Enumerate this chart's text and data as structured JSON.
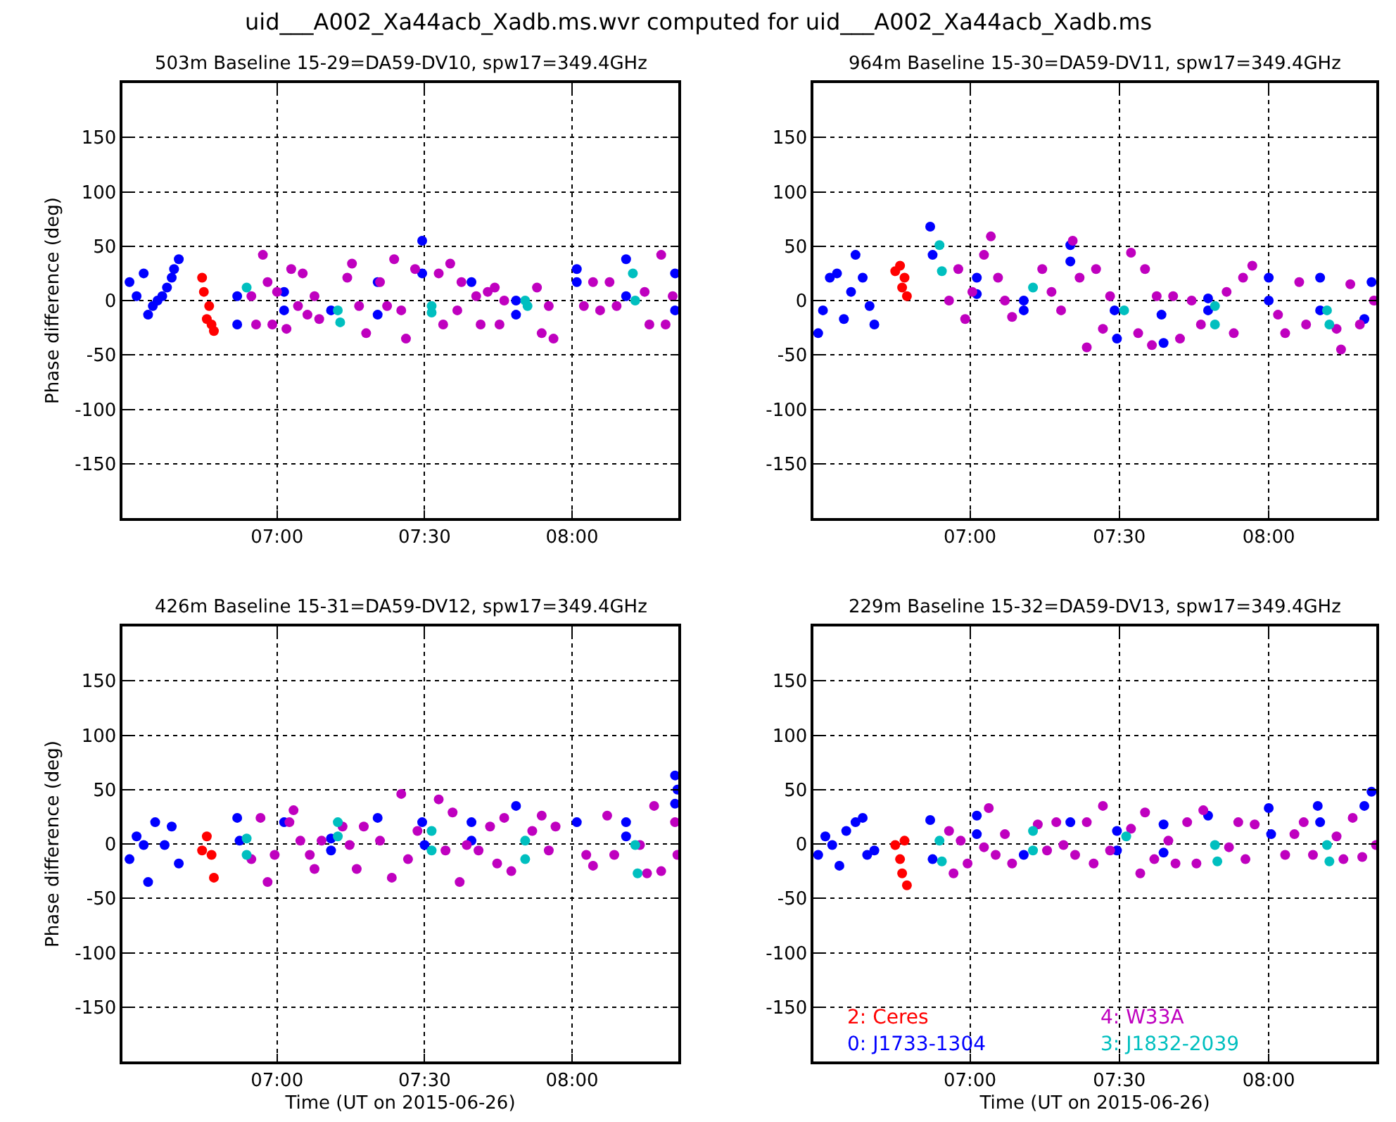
{
  "chart_data": [
    {
      "type": "scatter",
      "title": "503m Baseline 15-29=DA59-DV10, spw17=349.4GHz",
      "ylabel": "Phase difference (deg)",
      "annotations": [
        "uid___A002_Xa44acb_Xadb.ms.wvr computed for uid___A002_Xa44acb_Xadb.ms"
      ],
      "xlim": [
        6.476,
        8.36
      ],
      "xticks": [
        {
          "value": 7,
          "label": "07:00"
        },
        {
          "value": 7.5,
          "label": "07:30"
        },
        {
          "value": 8,
          "label": "08:00"
        }
      ],
      "ylim": [
        -200,
        200
      ],
      "yticks": [
        -150,
        -100,
        -50,
        0,
        50,
        100,
        150
      ],
      "grid": true,
      "marker": "circle",
      "series": [
        {
          "color": "#ff0000",
          "x": [
            6.746,
            6.752,
            6.762,
            6.77,
            6.778,
            6.786
          ],
          "values": [
            21,
            8,
            -17,
            -5,
            -22,
            -28
          ]
        },
        {
          "color": "#0000ff",
          "x": [
            6.5,
            6.524,
            6.548,
            6.563,
            6.579,
            6.595,
            6.611,
            6.627,
            6.643,
            6.651,
            6.667,
            6.865,
            6.865,
            7.024,
            7.024,
            7.183,
            7.341,
            7.341,
            7.492,
            7.492,
            7.659,
            7.81,
            7.81,
            8.016,
            8.016,
            8.183,
            8.183,
            8.349,
            8.349
          ],
          "values": [
            17,
            4,
            25,
            -13,
            -5,
            0,
            4,
            12,
            21,
            29,
            38,
            4,
            -22,
            8,
            -9,
            -9,
            17,
            -13,
            55,
            25,
            17,
            0,
            -13,
            29,
            17,
            38,
            4,
            25,
            -9
          ]
        },
        {
          "color": "#bf00bf",
          "x": [
            6.913,
            6.929,
            6.952,
            6.968,
            6.984,
            7.0,
            7.032,
            7.048,
            7.071,
            7.087,
            7.103,
            7.127,
            7.143,
            7.238,
            7.254,
            7.278,
            7.302,
            7.349,
            7.373,
            7.397,
            7.421,
            7.437,
            7.468,
            7.548,
            7.563,
            7.587,
            7.611,
            7.625,
            7.675,
            7.69,
            7.714,
            7.738,
            7.754,
            7.77,
            7.881,
            7.897,
            7.921,
            7.937,
            8.04,
            8.071,
            8.095,
            8.127,
            8.151,
            8.246,
            8.262,
            8.302,
            8.317,
            8.341
          ],
          "values": [
            4,
            -22,
            42,
            17,
            -22,
            8,
            -26,
            29,
            -5,
            25,
            -13,
            4,
            -17,
            21,
            34,
            -5,
            -30,
            17,
            -5,
            38,
            -9,
            -35,
            29,
            25,
            -22,
            34,
            -9,
            17,
            4,
            -22,
            8,
            12,
            -22,
            0,
            12,
            -30,
            -5,
            -35,
            -5,
            17,
            -9,
            17,
            -5,
            8,
            -22,
            42,
            -22,
            4
          ]
        },
        {
          "color": "#00bfbf",
          "x": [
            6.897,
            7.206,
            7.214,
            7.524,
            7.524,
            7.841,
            7.849,
            8.206,
            8.214
          ],
          "values": [
            12,
            -9,
            -20,
            -5,
            -11,
            0,
            -5,
            25,
            0
          ]
        }
      ]
    },
    {
      "type": "scatter",
      "title": "964m Baseline 15-30=DA59-DV11, spw17=349.4GHz",
      "xlim": [
        6.476,
        8.36
      ],
      "xticks": [
        {
          "value": 7,
          "label": "07:00"
        },
        {
          "value": 7.5,
          "label": "07:30"
        },
        {
          "value": 8,
          "label": "08:00"
        }
      ],
      "ylim": [
        -200,
        200
      ],
      "yticks": [
        -150,
        -100,
        -50,
        0,
        50,
        100,
        150
      ],
      "grid": true,
      "marker": "circle",
      "series": [
        {
          "color": "#ff0000",
          "x": [
            6.75,
            6.766,
            6.773,
            6.781,
            6.789
          ],
          "values": [
            27,
            32,
            12,
            21,
            4
          ]
        },
        {
          "color": "#0000ff",
          "x": [
            6.492,
            6.508,
            6.531,
            6.555,
            6.578,
            6.602,
            6.617,
            6.641,
            6.664,
            6.68,
            6.867,
            6.875,
            7.023,
            7.023,
            7.18,
            7.18,
            7.336,
            7.336,
            7.484,
            7.492,
            7.641,
            7.648,
            7.797,
            7.797,
            8.0,
            8.0,
            8.172,
            8.172,
            8.32,
            8.344
          ],
          "values": [
            -30,
            -9,
            21,
            25,
            -17,
            8,
            42,
            21,
            -5,
            -22,
            68,
            42,
            21,
            6,
            0,
            -9,
            51,
            36,
            -9,
            -35,
            -13,
            -39,
            2,
            -9,
            21,
            0,
            21,
            -9,
            -17,
            17
          ]
        },
        {
          "color": "#bf00bf",
          "x": [
            6.93,
            6.961,
            6.984,
            7.008,
            7.047,
            7.07,
            7.094,
            7.117,
            7.141,
            7.242,
            7.273,
            7.305,
            7.344,
            7.367,
            7.391,
            7.422,
            7.445,
            7.469,
            7.539,
            7.563,
            7.586,
            7.609,
            7.625,
            7.68,
            7.703,
            7.742,
            7.773,
            7.859,
            7.883,
            7.914,
            7.945,
            8.031,
            8.055,
            8.102,
            8.125,
            8.227,
            8.242,
            8.273,
            8.305,
            8.352
          ],
          "values": [
            0,
            29,
            -17,
            8,
            42,
            59,
            21,
            0,
            -15,
            29,
            8,
            -9,
            55,
            21,
            -43,
            29,
            -26,
            4,
            44,
            -30,
            29,
            -41,
            4,
            4,
            -35,
            0,
            -22,
            8,
            -30,
            21,
            32,
            -13,
            -30,
            17,
            -22,
            -26,
            -45,
            15,
            -22,
            0
          ]
        },
        {
          "color": "#00bfbf",
          "x": [
            6.898,
            6.906,
            7.211,
            7.516,
            7.82,
            7.82,
            8.195,
            8.203
          ],
          "values": [
            51,
            27,
            12,
            -9,
            -5,
            -22,
            -9,
            -22
          ]
        }
      ]
    },
    {
      "type": "scatter",
      "title": "426m Baseline 15-31=DA59-DV12, spw17=349.4GHz",
      "xlabel": "Time (UT on 2015-06-26)",
      "ylabel": "Phase difference (deg)",
      "xlim": [
        6.476,
        8.36
      ],
      "xticks": [
        {
          "value": 7,
          "label": "07:00"
        },
        {
          "value": 7.5,
          "label": "07:30"
        },
        {
          "value": 8,
          "label": "08:00"
        }
      ],
      "ylim": [
        -200,
        200
      ],
      "yticks": [
        -150,
        -100,
        -50,
        0,
        50,
        100,
        150
      ],
      "grid": true,
      "marker": "circle",
      "series": [
        {
          "color": "#ff0000",
          "x": [
            6.746,
            6.762,
            6.778,
            6.786
          ],
          "values": [
            -6,
            7,
            -10,
            -31
          ]
        },
        {
          "color": "#0000ff",
          "x": [
            6.5,
            6.524,
            6.548,
            6.563,
            6.587,
            6.619,
            6.643,
            6.667,
            6.865,
            6.873,
            7.024,
            7.183,
            7.183,
            7.341,
            7.492,
            7.5,
            7.659,
            7.659,
            7.81,
            8.016,
            8.183,
            8.183,
            8.349,
            8.349,
            8.357
          ],
          "values": [
            -14,
            7,
            -1,
            -35,
            20,
            -1,
            16,
            -18,
            24,
            3,
            20,
            5,
            -6,
            24,
            20,
            -1,
            20,
            3,
            35,
            20,
            20,
            7,
            63,
            37,
            50
          ]
        },
        {
          "color": "#bf00bf",
          "x": [
            6.913,
            6.944,
            6.968,
            6.992,
            7.042,
            7.056,
            7.079,
            7.111,
            7.127,
            7.151,
            7.222,
            7.246,
            7.27,
            7.294,
            7.349,
            7.389,
            7.421,
            7.444,
            7.476,
            7.548,
            7.571,
            7.595,
            7.619,
            7.643,
            7.683,
            7.722,
            7.746,
            7.77,
            7.794,
            7.865,
            7.897,
            7.921,
            7.944,
            8.048,
            8.071,
            8.119,
            8.143,
            8.23,
            8.254,
            8.278,
            8.302,
            8.349,
            8.357
          ],
          "values": [
            -14,
            24,
            -35,
            -10,
            20,
            31,
            3,
            -10,
            -23,
            3,
            16,
            -1,
            -23,
            16,
            3,
            -31,
            46,
            -14,
            12,
            41,
            -6,
            29,
            -35,
            -1,
            -6,
            16,
            -18,
            24,
            -25,
            12,
            26,
            -6,
            16,
            -10,
            -20,
            26,
            -10,
            -1,
            -27,
            35,
            -25,
            20,
            -10
          ]
        },
        {
          "color": "#00bfbf",
          "x": [
            6.897,
            6.897,
            7.206,
            7.206,
            7.524,
            7.524,
            7.841,
            7.841,
            8.214,
            8.222
          ],
          "values": [
            5,
            -10,
            20,
            7,
            12,
            -6,
            3,
            -14,
            -1,
            -27
          ]
        }
      ]
    },
    {
      "type": "scatter",
      "title": "229m Baseline 15-32=DA59-DV13, spw17=349.4GHz",
      "xlabel": "Time (UT on 2015-06-26)",
      "xlim": [
        6.476,
        8.36
      ],
      "xticks": [
        {
          "value": 7,
          "label": "07:00"
        },
        {
          "value": 7.5,
          "label": "07:30"
        },
        {
          "value": 8,
          "label": "08:00"
        }
      ],
      "ylim": [
        -200,
        200
      ],
      "yticks": [
        -150,
        -100,
        -50,
        0,
        50,
        100,
        150
      ],
      "grid": true,
      "marker": "circle",
      "legend": "bottom",
      "series": [
        {
          "name": "2: Ceres",
          "color": "#ff0000",
          "x": [
            6.75,
            6.766,
            6.773,
            6.781,
            6.789
          ],
          "values": [
            -1,
            -14,
            -27,
            3,
            -38
          ]
        },
        {
          "name": "0: J1733-1304",
          "color": "#0000ff",
          "x": [
            6.492,
            6.516,
            6.539,
            6.563,
            6.586,
            6.617,
            6.641,
            6.656,
            6.68,
            6.867,
            6.875,
            7.023,
            7.023,
            7.18,
            7.336,
            7.492,
            7.492,
            7.648,
            7.648,
            7.797,
            8.0,
            8.008,
            8.164,
            8.172,
            8.32,
            8.344
          ],
          "values": [
            -10,
            7,
            -1,
            -20,
            12,
            20,
            24,
            -10,
            -6,
            22,
            -14,
            26,
            9,
            -10,
            20,
            12,
            -6,
            18,
            -8,
            26,
            33,
            9,
            35,
            20,
            35,
            48
          ]
        },
        {
          "name": "4: W33A",
          "color": "#bf00bf",
          "x": [
            6.93,
            6.945,
            6.969,
            6.992,
            7.047,
            7.063,
            7.086,
            7.117,
            7.141,
            7.227,
            7.258,
            7.289,
            7.313,
            7.352,
            7.391,
            7.414,
            7.445,
            7.469,
            7.539,
            7.57,
            7.586,
            7.617,
            7.664,
            7.688,
            7.727,
            7.758,
            7.781,
            7.867,
            7.898,
            7.922,
            7.953,
            8.055,
            8.086,
            8.117,
            8.148,
            8.227,
            8.25,
            8.281,
            8.313,
            8.359
          ],
          "values": [
            12,
            -27,
            3,
            -18,
            -3,
            33,
            -10,
            9,
            -18,
            18,
            -6,
            20,
            -1,
            -10,
            20,
            -18,
            35,
            -6,
            14,
            -27,
            29,
            -14,
            3,
            -18,
            20,
            -18,
            31,
            -3,
            20,
            -14,
            18,
            -10,
            9,
            20,
            -10,
            7,
            -14,
            24,
            -12,
            -1
          ]
        },
        {
          "name": "3: J1832-2039",
          "color": "#00bfbf",
          "x": [
            6.898,
            6.906,
            7.211,
            7.211,
            7.523,
            7.82,
            7.828,
            8.195,
            8.203
          ],
          "values": [
            3,
            -16,
            12,
            -6,
            7,
            -1,
            -16,
            -1,
            -16
          ]
        }
      ]
    }
  ]
}
